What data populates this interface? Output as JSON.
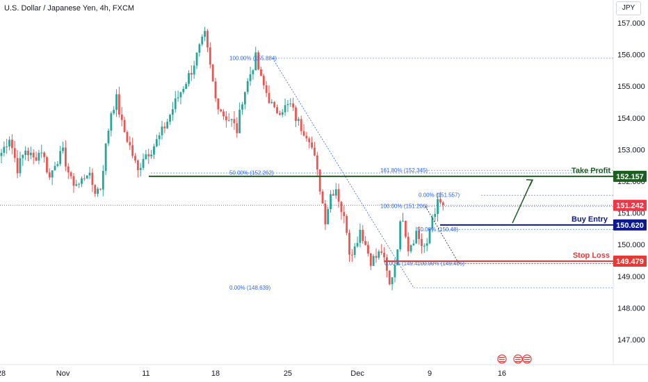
{
  "header": {
    "symbol_title": "U.S. Dollar / Japanese Yen, 4h, FXCM",
    "currency": "JPY"
  },
  "colors": {
    "up": "#26a69a",
    "down": "#ef5350",
    "take_profit": "#1b5e20",
    "buy_entry": "#0d1a8f",
    "stop_loss": "#e53935",
    "fib": "#2962ff",
    "current_price": "#f23645"
  },
  "chart_data": {
    "type": "candlestick",
    "ylim": [
      146.2,
      157.5
    ],
    "y_ticks": [
      147.0,
      148.0,
      149.0,
      150.0,
      151.0,
      152.0,
      153.0,
      154.0,
      155.0,
      156.0,
      157.0
    ],
    "y_tick_labels": [
      "147.000",
      "148.000",
      "149.000",
      "150.000",
      "151.000",
      "152.000",
      "153.000",
      "154.000",
      "155.000",
      "156.000",
      "157.000"
    ],
    "x_labels": [
      {
        "bar": 0,
        "label": "28"
      },
      {
        "bar": 23,
        "label": "Nov"
      },
      {
        "bar": 54,
        "label": "11"
      },
      {
        "bar": 80,
        "label": "18"
      },
      {
        "bar": 107,
        "label": "25"
      },
      {
        "bar": 133,
        "label": "Dec"
      },
      {
        "bar": 160,
        "label": "9"
      },
      {
        "bar": 187,
        "label": "16"
      }
    ],
    "close_path": [
      [
        0,
        152.9
      ],
      [
        3,
        153.4
      ],
      [
        6,
        152.4
      ],
      [
        9,
        153.0
      ],
      [
        12,
        152.7
      ],
      [
        15,
        153.0
      ],
      [
        18,
        152.1
      ],
      [
        20,
        152.6
      ],
      [
        23,
        152.9
      ],
      [
        26,
        152.0
      ],
      [
        29,
        151.9
      ],
      [
        32,
        152.3
      ],
      [
        35,
        151.7
      ],
      [
        37,
        151.8
      ],
      [
        39,
        153.1
      ],
      [
        41,
        154.2
      ],
      [
        43,
        154.6
      ],
      [
        45,
        153.8
      ],
      [
        48,
        153.1
      ],
      [
        51,
        152.3
      ],
      [
        53,
        152.8
      ],
      [
        56,
        153.0
      ],
      [
        59,
        153.4
      ],
      [
        62,
        153.9
      ],
      [
        65,
        154.5
      ],
      [
        68,
        155.0
      ],
      [
        71,
        155.5
      ],
      [
        74,
        156.2
      ],
      [
        76,
        156.6
      ],
      [
        78,
        155.6
      ],
      [
        80,
        154.6
      ],
      [
        83,
        154.1
      ],
      [
        86,
        153.9
      ],
      [
        88,
        153.6
      ],
      [
        90,
        154.6
      ],
      [
        93,
        155.4
      ],
      [
        95,
        155.9
      ],
      [
        97,
        155.2
      ],
      [
        100,
        154.6
      ],
      [
        102,
        154.2
      ],
      [
        105,
        154.3
      ],
      [
        108,
        154.4
      ],
      [
        110,
        154.0
      ],
      [
        112,
        153.7
      ],
      [
        115,
        153.4
      ],
      [
        117,
        152.7
      ],
      [
        119,
        151.8
      ],
      [
        121,
        150.8
      ],
      [
        123,
        151.6
      ],
      [
        125,
        151.8
      ],
      [
        127,
        151.1
      ],
      [
        129,
        150.5
      ],
      [
        130,
        149.8
      ],
      [
        132,
        149.9
      ],
      [
        134,
        150.5
      ],
      [
        136,
        150.0
      ],
      [
        138,
        149.5
      ],
      [
        140,
        149.6
      ],
      [
        142,
        149.8
      ],
      [
        144,
        149.1
      ],
      [
        145,
        148.7
      ],
      [
        147,
        149.4
      ],
      [
        149,
        150.6
      ],
      [
        150,
        150.9
      ],
      [
        152,
        149.9
      ],
      [
        154,
        150.2
      ],
      [
        155,
        150.4
      ],
      [
        157,
        150.0
      ],
      [
        159,
        149.9
      ],
      [
        160,
        150.5
      ],
      [
        161,
        150.9
      ],
      [
        163,
        151.3
      ],
      [
        165,
        151.25
      ]
    ],
    "last_price": 151.242,
    "levels": [
      {
        "name": "Take Profit",
        "value": 152.157,
        "label": "152.157"
      },
      {
        "name": "Buy Entry",
        "value": 150.62,
        "label": "150.620"
      },
      {
        "name": "Stop Loss",
        "value": 149.479,
        "label": "149.479"
      }
    ],
    "current_price_label": "151.242",
    "fib_labels": [
      {
        "text": "100.00% (155.884)",
        "value": 155.884
      },
      {
        "text": "50.00% (152.262)",
        "value": 152.262
      },
      {
        "text": "0.00% (148.639)",
        "value": 148.639
      },
      {
        "text": "161.80% (152.345)",
        "value": 152.345
      },
      {
        "text": "0.00% (151.557)",
        "value": 151.557
      },
      {
        "text": "100.00% (151.206)",
        "value": 151.206
      },
      {
        "text": "50.00% (150.48)",
        "value": 150.48
      },
      {
        "text": "0.00% (149.4",
        "value": 149.4
      },
      {
        "text": "100.00% (149.405)",
        "value": 149.405
      }
    ]
  }
}
